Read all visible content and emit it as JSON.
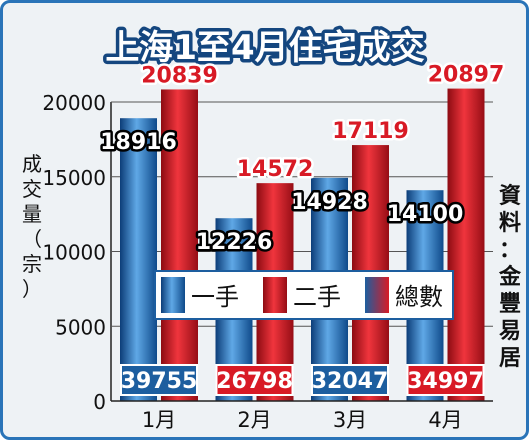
{
  "chart_data": {
    "type": "bar",
    "title": "上海1至4月住宅成交",
    "ylabel": "成交量（宗）",
    "source": "資料：金豐易居",
    "categories": [
      "1月",
      "2月",
      "3月",
      "4月"
    ],
    "ylim": [
      0,
      20000
    ],
    "yticks": [
      "0",
      "5000",
      "10000",
      "15000",
      "20000"
    ],
    "grid": true,
    "legend_position": "center",
    "series": [
      {
        "name": "一手",
        "values": [
          18916,
          12226,
          14928,
          14100
        ],
        "color": "#2d7bc4"
      },
      {
        "name": "二手",
        "values": [
          20839,
          14572,
          17119,
          20897
        ],
        "color": "#d81a25"
      }
    ],
    "totals": {
      "name": "總數",
      "values": [
        39755,
        26798,
        32047,
        34997
      ]
    },
    "colors": {
      "total_box": "#1d5e9f",
      "total_box_alt": "#d81a25",
      "frame": "#2a74b8"
    }
  }
}
